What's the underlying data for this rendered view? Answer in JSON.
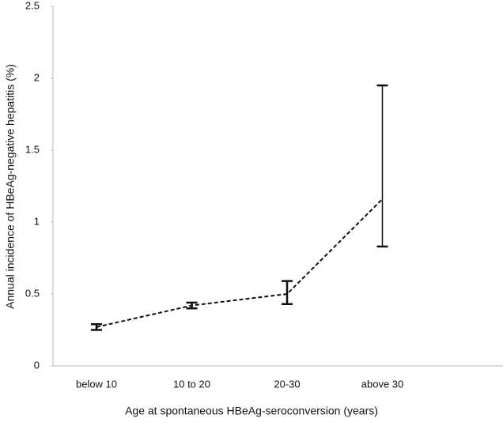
{
  "chart_data": {
    "type": "line",
    "x_label": "Age at spontaneous HBeAg-seroconversion (years)",
    "y_label": "Annual incidence of HBeAg-negative hepatitis (%)",
    "categories": [
      "below 10",
      "10 to 20",
      "20-30",
      "above 30"
    ],
    "values": [
      0.27,
      0.42,
      0.5,
      1.16
    ],
    "ci_low": [
      0.25,
      0.4,
      0.43,
      0.83
    ],
    "ci_high": [
      0.29,
      0.44,
      0.59,
      1.95
    ],
    "color": "#111111",
    "line_style": "dashed",
    "ylim": [
      0,
      2.5
    ],
    "yticks": [
      0,
      0.5,
      1,
      1.5,
      2,
      2.5
    ],
    "grid": false
  }
}
